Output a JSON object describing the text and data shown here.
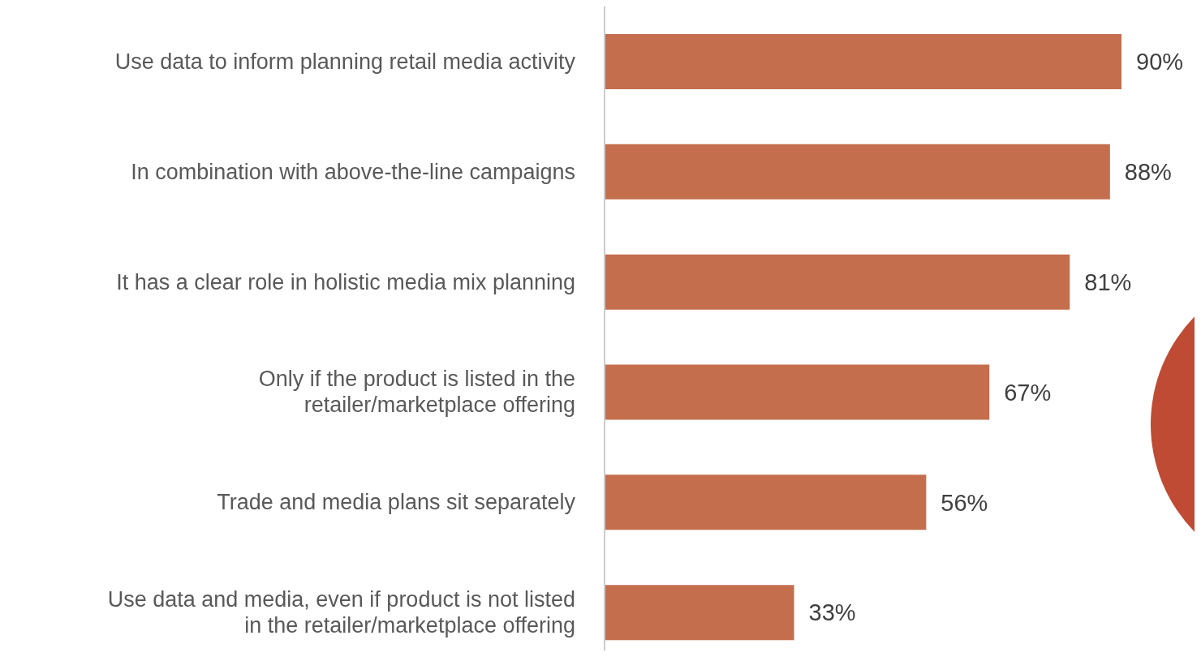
{
  "chart_data": {
    "type": "bar",
    "orientation": "horizontal",
    "categories": [
      "Use data to inform planning retail media activity",
      "In combination with above-the-line campaigns",
      "It has a clear role in holistic media mix planning",
      "Only if the product is listed in the retailer/marketplace offering",
      "Trade and media plans sit separately",
      "Use data and media, even if product is not listed in the retailer/marketplace offering"
    ],
    "values": [
      90,
      88,
      81,
      67,
      56,
      33
    ],
    "value_labels": [
      "90%",
      "88%",
      "81%",
      "67%",
      "56%",
      "33%"
    ],
    "color": "#c56e4e",
    "grid": false,
    "legend": false
  }
}
